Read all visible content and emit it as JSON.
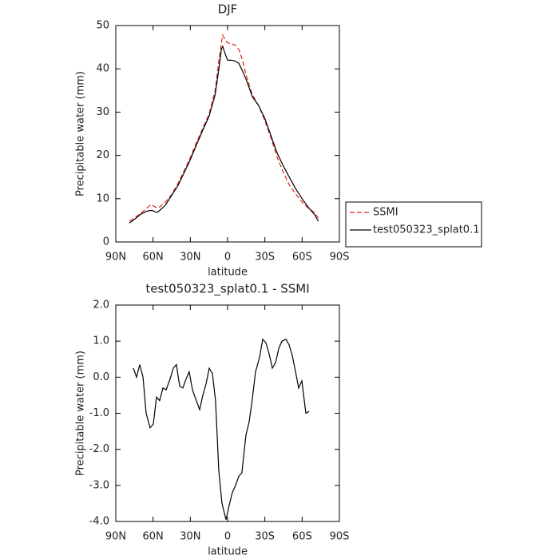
{
  "chart_data": [
    {
      "type": "line",
      "title": "DJF",
      "x_label": "latitude",
      "y_label": "Precipitable water (mm)",
      "x": [
        79,
        75,
        70,
        65,
        62,
        60,
        57,
        55,
        50,
        45,
        40,
        35,
        30,
        25,
        20,
        15,
        10,
        7,
        5,
        4,
        2,
        0,
        -3,
        -6,
        -9,
        -12,
        -15,
        -20,
        -25,
        -30,
        -35,
        -40,
        -45,
        -50,
        -55,
        -60,
        -65,
        -70,
        -73
      ],
      "series": [
        {
          "name": "SSMI",
          "color": "#e0241b",
          "dash": true,
          "values": [
            4.8,
            5.5,
            6.6,
            7.8,
            8.6,
            8.4,
            7.9,
            8.0,
            9.2,
            11,
            13.5,
            16.5,
            19.5,
            23,
            26.3,
            29.5,
            35,
            42,
            46,
            47.8,
            46.8,
            46,
            45.8,
            45.5,
            44.5,
            42,
            38.5,
            34,
            31.5,
            28,
            24,
            19.5,
            16,
            13,
            11,
            9.2,
            7.8,
            6.8,
            5.5
          ]
        },
        {
          "name": "test050323_splat0.1",
          "color": "#000000",
          "dash": false,
          "values": [
            4.4,
            5.2,
            6.4,
            7.1,
            7.3,
            7.2,
            6.8,
            7.2,
            8.5,
            10.8,
            13,
            16,
            19,
            22.5,
            25.8,
            29,
            34,
            40,
            44.5,
            45.2,
            43.5,
            42,
            42,
            41.8,
            41.3,
            39.5,
            37.5,
            33.5,
            31.5,
            28.5,
            24.5,
            20.5,
            17.5,
            14.8,
            12.2,
            10,
            8,
            6.3,
            4.8
          ]
        }
      ],
      "xlim": [
        90,
        -90
      ],
      "xticks": [
        {
          "value": 90,
          "label": "90N"
        },
        {
          "value": 60,
          "label": "60N"
        },
        {
          "value": 30,
          "label": "30N"
        },
        0,
        {
          "value": -30,
          "label": "30S"
        },
        {
          "value": -60,
          "label": "60S"
        },
        {
          "value": -90,
          "label": "90S"
        }
      ],
      "ylim": [
        0,
        50
      ],
      "yticks": [
        0,
        10,
        20,
        30,
        40,
        50
      ],
      "legend": "right"
    },
    {
      "type": "line",
      "title": "test050323_splat0.1 - SSMI",
      "x_label": "latitude",
      "y_label": "Precipitable water (mm)",
      "x": [
        75.9,
        73.3,
        70.7,
        68.1,
        65.6,
        62.4,
        59.8,
        57.2,
        54.7,
        52.1,
        49.5,
        46.3,
        43.7,
        41.2,
        38.6,
        36.0,
        33.4,
        30.9,
        28.3,
        25.7,
        22.5,
        19.9,
        17.4,
        14.8,
        12.2,
        9.7,
        7.1,
        4.5,
        1.3,
        -1.3,
        -3.8,
        -6.4,
        -9.0,
        -11.5,
        -14.8,
        -17.3,
        -19.9,
        -22.5,
        -25.7,
        -28.3,
        -30.9,
        -33.4,
        -36.0,
        -38.6,
        -41.2,
        -43.7,
        -47.0,
        -49.5,
        -52.1,
        -54.7,
        -57.2,
        -59.8,
        -63.0,
        -65.6
      ],
      "series": [
        {
          "color": "#000000",
          "dash": false,
          "values": [
            0.25,
            0.0,
            0.35,
            0.0,
            -1.0,
            -1.4,
            -1.3,
            -0.55,
            -0.65,
            -0.3,
            -0.35,
            -0.05,
            0.25,
            0.35,
            -0.25,
            -0.3,
            -0.05,
            0.15,
            -0.35,
            -0.6,
            -0.9,
            -0.5,
            -0.2,
            0.25,
            0.1,
            -0.65,
            -2.6,
            -3.5,
            -3.95,
            -3.55,
            -3.2,
            -3.0,
            -2.75,
            -2.65,
            -1.6,
            -1.25,
            -0.6,
            0.15,
            0.55,
            1.05,
            0.95,
            0.65,
            0.25,
            0.4,
            0.8,
            1.0,
            1.05,
            0.9,
            0.6,
            0.15,
            -0.3,
            -0.1,
            -1.0,
            -0.95
          ]
        }
      ],
      "xlim": [
        90,
        -90
      ],
      "xticks": [
        {
          "value": 90,
          "label": "90N"
        },
        {
          "value": 60,
          "label": "60N"
        },
        {
          "value": 30,
          "label": "30N"
        },
        0,
        {
          "value": -30,
          "label": "30S"
        },
        {
          "value": -60,
          "label": "60S"
        },
        {
          "value": -90,
          "label": "90S"
        }
      ],
      "ylim": [
        -4,
        2
      ],
      "yticks": [
        {
          "value": -4,
          "label": "-4.0"
        },
        {
          "value": -3,
          "label": "-3.0"
        },
        {
          "value": -2,
          "label": "-2.0"
        },
        {
          "value": -1,
          "label": "-1.0"
        },
        {
          "value": 0,
          "label": "0.0"
        },
        {
          "value": 1,
          "label": "1.0"
        },
        {
          "value": 2,
          "label": "2.0"
        }
      ]
    }
  ]
}
